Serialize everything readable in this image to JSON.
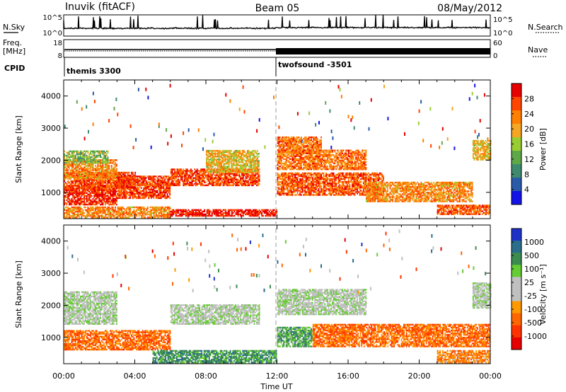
{
  "header": {
    "station": "Inuvik (fitACF)",
    "beam": "Beam 05",
    "date": "08/May/2012"
  },
  "top_panels": {
    "nsky_label": "N.Sky",
    "nsky_ticks": [
      "10^5",
      "10^0"
    ],
    "nsky_ticks_right": [
      "10^5",
      "10^0"
    ],
    "nsearch_label": "N.Search",
    "freq_label": "Freq.",
    "freq_unit": "[MHz]",
    "freq_ticks": [
      "18",
      "8"
    ],
    "nave_ticks": [
      "60",
      "0"
    ],
    "nave_label": "Nave",
    "cpid_label": "CPID",
    "cpid_entries": [
      {
        "name": "themis 3300",
        "start_hour": 0
      },
      {
        "name": "twofsound -3501",
        "start_hour": 12
      }
    ]
  },
  "colors": {
    "power_scale": [
      "#1414e6",
      "#2a5aa8",
      "#3e8a6e",
      "#5fa84a",
      "#9acd32",
      "#f5a623",
      "#ff7f00",
      "#ff4500",
      "#e60000"
    ],
    "velocity_scale": [
      "#1e32c8",
      "#2a6e8c",
      "#3c8c50",
      "#66cc33",
      "#c0c0c0",
      "#c0c0c0",
      "#ff9900",
      "#ff6600",
      "#ff3300",
      "#e60000"
    ]
  },
  "chart_data": [
    {
      "type": "heatmap",
      "name": "power",
      "title": "",
      "xlabel": "",
      "ylabel": "Slant Range [km]",
      "xlim": [
        0,
        24
      ],
      "ylim": [
        180,
        4500
      ],
      "x_ticks": [
        "00:00",
        "04:00",
        "08:00",
        "12:00",
        "16:00",
        "20:00",
        "00:00"
      ],
      "y_ticks": [
        "1000",
        "2000",
        "3000",
        "4000"
      ],
      "colorbar_label": "Power [dB]",
      "colorbar_ticks": [
        "4",
        "8",
        "12",
        "16",
        "20",
        "24",
        "28"
      ],
      "bands": [
        {
          "range_km": [
            200,
            550
          ],
          "hours": [
            0,
            6
          ],
          "level": 0.7
        },
        {
          "range_km": [
            250,
            450
          ],
          "hours": [
            6,
            12
          ],
          "level": 0.95
        },
        {
          "range_km": [
            600,
            1200
          ],
          "hours": [
            0,
            3
          ],
          "level": 0.9
        },
        {
          "range_km": [
            800,
            1500
          ],
          "hours": [
            3,
            6
          ],
          "level": 0.85
        },
        {
          "range_km": [
            1100,
            1600
          ],
          "hours": [
            0,
            4
          ],
          "level": 0.85
        },
        {
          "range_km": [
            1400,
            2000
          ],
          "hours": [
            0,
            3
          ],
          "level": 0.7
        },
        {
          "range_km": [
            1900,
            2300
          ],
          "hours": [
            0,
            2.5
          ],
          "level": 0.45
        },
        {
          "range_km": [
            1200,
            1700
          ],
          "hours": [
            6,
            11
          ],
          "level": 0.85
        },
        {
          "range_km": [
            1600,
            2300
          ],
          "hours": [
            8,
            11
          ],
          "level": 0.6
        },
        {
          "range_km": [
            1700,
            2300
          ],
          "hours": [
            12,
            17
          ],
          "level": 0.75
        },
        {
          "range_km": [
            2200,
            2700
          ],
          "hours": [
            12,
            14.5
          ],
          "level": 0.75
        },
        {
          "range_km": [
            900,
            1600
          ],
          "hours": [
            12,
            18
          ],
          "level": 0.8
        },
        {
          "range_km": [
            700,
            1300
          ],
          "hours": [
            17,
            23
          ],
          "level": 0.7
        },
        {
          "range_km": [
            300,
            600
          ],
          "hours": [
            21,
            24
          ],
          "level": 0.8
        },
        {
          "range_km": [
            2000,
            2600
          ],
          "hours": [
            23,
            24
          ],
          "level": 0.6
        }
      ]
    },
    {
      "type": "heatmap",
      "name": "velocity",
      "title": "",
      "xlabel": "Time UT",
      "ylabel": "Slant Range [km]",
      "xlim": [
        0,
        24
      ],
      "ylim": [
        180,
        4500
      ],
      "x_ticks": [
        "00:00",
        "04:00",
        "08:00",
        "12:00",
        "16:00",
        "20:00",
        "00:00"
      ],
      "y_ticks": [
        "1000",
        "2000",
        "3000",
        "4000"
      ],
      "colorbar_label": "Velocity [m s⁻¹]",
      "colorbar_ticks": [
        "1000",
        "500",
        "100",
        "25",
        "-25",
        "-100",
        "-500",
        "-1000"
      ],
      "bands": [
        {
          "range_km": [
            600,
            1200
          ],
          "hours": [
            0,
            6
          ],
          "level": 0.75
        },
        {
          "range_km": [
            200,
            600
          ],
          "hours": [
            5,
            12
          ],
          "level": 0.25
        },
        {
          "range_km": [
            1400,
            2400
          ],
          "hours": [
            0,
            3
          ],
          "level": 0.45
        },
        {
          "range_km": [
            1400,
            2000
          ],
          "hours": [
            6,
            11
          ],
          "level": 0.45
        },
        {
          "range_km": [
            1700,
            2500
          ],
          "hours": [
            12,
            17
          ],
          "level": 0.45
        },
        {
          "range_km": [
            700,
            1300
          ],
          "hours": [
            12,
            14
          ],
          "level": 0.3
        },
        {
          "range_km": [
            700,
            1400
          ],
          "hours": [
            14,
            24
          ],
          "level": 0.75
        },
        {
          "range_km": [
            200,
            600
          ],
          "hours": [
            21,
            24
          ],
          "level": 0.7
        },
        {
          "range_km": [
            1900,
            2700
          ],
          "hours": [
            23,
            24
          ],
          "level": 0.45
        }
      ]
    }
  ]
}
